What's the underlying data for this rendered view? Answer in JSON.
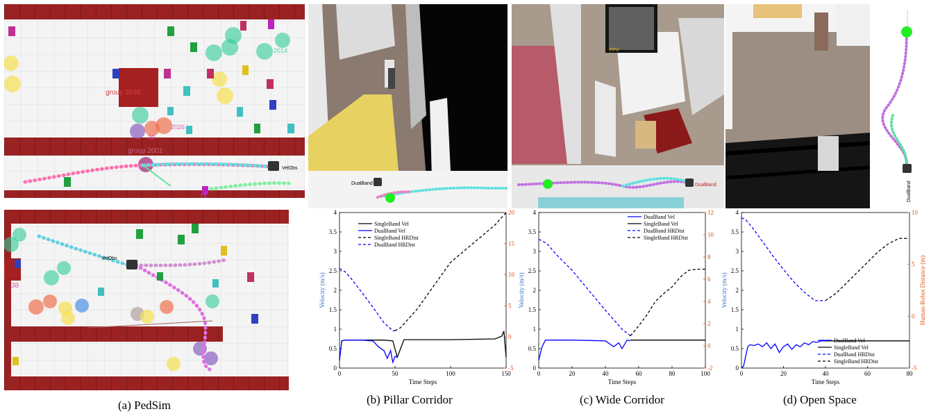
{
  "captions": {
    "a": "(a) PedSim",
    "b": "(b) Pillar Corridor",
    "c": "(c) Wide Corridor",
    "d": "(d) Open Space"
  },
  "scene_labels": {
    "pedsim_group_top": "group 2038",
    "pedsim_group_mid": "group 2001",
    "pedsim_id_39": "39",
    "pedsim_id_15": "15",
    "pedsim_velobs_top": "VelObs",
    "pedsim_velobs_bottom": "VelObs",
    "pedsim_id_38": "38",
    "pedsim_id_2014": "2014",
    "pedsim_id_2026": "2026",
    "pillar_dualband": "DualBand",
    "wide_fpv": "FPV",
    "wide_dualband": "DualBand",
    "open_dualband": "DualBand"
  },
  "colors": {
    "wall_red": "#9b2222",
    "floor_white": "#f2f2f2",
    "dualband_blue": "#0000ff",
    "singleband_black": "#000000",
    "left_axis_blue": "#3070c0",
    "right_axis_orange": "#d95319",
    "goal_green": "#22ee22"
  },
  "chart_data": [
    {
      "type": "line",
      "xlabel": "Time Steps",
      "ylabel": "Velocity (m/s)",
      "y2label": "",
      "xlim": [
        0,
        150
      ],
      "ylim": [
        0,
        4
      ],
      "y2lim": [
        -5,
        20
      ],
      "xticks": [
        0,
        50,
        100,
        150
      ],
      "yticks": [
        0,
        0.5,
        1,
        1.5,
        2,
        2.5,
        3,
        3.5,
        4
      ],
      "y2ticks": [
        -5,
        0,
        5,
        10,
        15,
        20
      ],
      "legend_position": "top-center",
      "series": [
        {
          "name": "SingleBand Vel",
          "axis": "left",
          "color": "#000000",
          "dash": false,
          "x": [
            0,
            2,
            5,
            20,
            40,
            48,
            52,
            55,
            58,
            100,
            140,
            146,
            148,
            150
          ],
          "y": [
            0.2,
            0.7,
            0.72,
            0.72,
            0.72,
            0.7,
            0.28,
            0.5,
            0.73,
            0.73,
            0.75,
            0.82,
            0.95,
            0.28
          ]
        },
        {
          "name": "DualBand Vel",
          "axis": "left",
          "color": "#0000ff",
          "dash": false,
          "x": [
            0,
            2,
            5,
            20,
            30,
            35,
            40,
            43,
            46,
            48,
            50,
            52
          ],
          "y": [
            0.2,
            0.7,
            0.72,
            0.72,
            0.7,
            0.55,
            0.45,
            0.25,
            0.45,
            0.15,
            0.3,
            0.28
          ]
        },
        {
          "name": "SingleBand HRDist",
          "axis": "right",
          "color": "#000000",
          "dash": true,
          "x": [
            50,
            55,
            60,
            70,
            80,
            90,
            100,
            110,
            120,
            130,
            140,
            150
          ],
          "y": [
            1,
            1.5,
            2.5,
            4.5,
            7,
            9.5,
            12,
            13.5,
            15,
            16.5,
            18,
            20
          ]
        },
        {
          "name": "DualBand HRDist",
          "axis": "right",
          "color": "#0000ff",
          "dash": true,
          "x": [
            0,
            5,
            10,
            20,
            30,
            40,
            48,
            52
          ],
          "y": [
            11,
            10.5,
            9.5,
            7.2,
            4.8,
            2.3,
            1,
            1
          ]
        }
      ]
    },
    {
      "type": "line",
      "xlabel": "Time Steps",
      "ylabel": "Velocity (m/s)",
      "y2label": "",
      "xlim": [
        0,
        100
      ],
      "ylim": [
        0,
        4
      ],
      "y2lim": [
        -2,
        12
      ],
      "xticks": [
        0,
        20,
        40,
        60,
        80,
        100
      ],
      "yticks": [
        0,
        0.5,
        1,
        1.5,
        2,
        2.5,
        3,
        3.5,
        4
      ],
      "y2ticks": [
        -2,
        0,
        2,
        4,
        6,
        8,
        10,
        12
      ],
      "legend_position": "top-right",
      "series": [
        {
          "name": "DualBand Vel",
          "axis": "left",
          "color": "#0000ff",
          "dash": false,
          "x": [
            0,
            2,
            4,
            20,
            40,
            45,
            48,
            50,
            53,
            55
          ],
          "y": [
            0.2,
            0.55,
            0.72,
            0.72,
            0.7,
            0.55,
            0.65,
            0.5,
            0.72,
            0.7
          ]
        },
        {
          "name": "SingleBand Vel",
          "axis": "left",
          "color": "#000000",
          "dash": false,
          "x": [
            55,
            70,
            100
          ],
          "y": [
            0.72,
            0.72,
            0.72
          ]
        },
        {
          "name": "DualBand HRDist",
          "axis": "right",
          "color": "#0000ff",
          "dash": true,
          "x": [
            0,
            5,
            10,
            20,
            30,
            40,
            50,
            55
          ],
          "y": [
            9.6,
            9.2,
            8.3,
            6.8,
            5.0,
            3.2,
            1.5,
            0.9
          ]
        },
        {
          "name": "SingleBand HRDist",
          "axis": "right",
          "color": "#000000",
          "dash": true,
          "x": [
            55,
            60,
            65,
            70,
            75,
            80,
            85,
            90,
            95,
            100
          ],
          "y": [
            0.9,
            1.8,
            2.8,
            4.0,
            4.7,
            5.3,
            6.2,
            6.8,
            6.9,
            6.9
          ]
        }
      ]
    },
    {
      "type": "line",
      "xlabel": "Time Steps",
      "ylabel": "Velocity (m/s)",
      "y2label": "Human-Robot Distance (m)",
      "xlim": [
        0,
        80
      ],
      "ylim": [
        0,
        4
      ],
      "y2lim": [
        -5,
        10
      ],
      "xticks": [
        0,
        20,
        40,
        60,
        80
      ],
      "yticks": [
        0,
        0.5,
        1,
        1.5,
        2,
        2.5,
        3,
        3.5,
        4
      ],
      "y2ticks": [
        -5,
        0,
        5,
        10
      ],
      "legend_position": "bottom-right",
      "series": [
        {
          "name": "DualBand Vel",
          "axis": "left",
          "color": "#0000ff",
          "dash": false,
          "x": [
            0,
            1,
            2,
            3,
            4,
            6,
            8,
            10,
            12,
            14,
            16,
            18,
            20,
            22,
            24,
            26,
            28,
            30,
            32,
            34,
            36,
            38,
            40
          ],
          "y": [
            0.0,
            0.05,
            0.3,
            0.55,
            0.6,
            0.58,
            0.62,
            0.55,
            0.65,
            0.5,
            0.62,
            0.4,
            0.55,
            0.62,
            0.48,
            0.6,
            0.55,
            0.65,
            0.6,
            0.68,
            0.66,
            0.7,
            0.7
          ]
        },
        {
          "name": "SingleBand Vel",
          "axis": "left",
          "color": "#000000",
          "dash": false,
          "x": [
            40,
            60,
            80
          ],
          "y": [
            0.7,
            0.7,
            0.7
          ]
        },
        {
          "name": "DualBand HRDist",
          "axis": "right",
          "color": "#0000ff",
          "dash": true,
          "x": [
            0,
            2,
            5,
            10,
            15,
            20,
            25,
            30,
            35,
            40
          ],
          "y": [
            9.5,
            9.3,
            8.6,
            7.2,
            5.8,
            4.5,
            3.3,
            2.3,
            1.5,
            1.5
          ]
        },
        {
          "name": "SingleBand HRDist",
          "axis": "right",
          "color": "#000000",
          "dash": true,
          "x": [
            40,
            45,
            50,
            55,
            60,
            65,
            70,
            75,
            80
          ],
          "y": [
            1.5,
            2.2,
            3.2,
            4.2,
            5.2,
            6.2,
            7.0,
            7.5,
            7.5
          ]
        }
      ]
    }
  ]
}
